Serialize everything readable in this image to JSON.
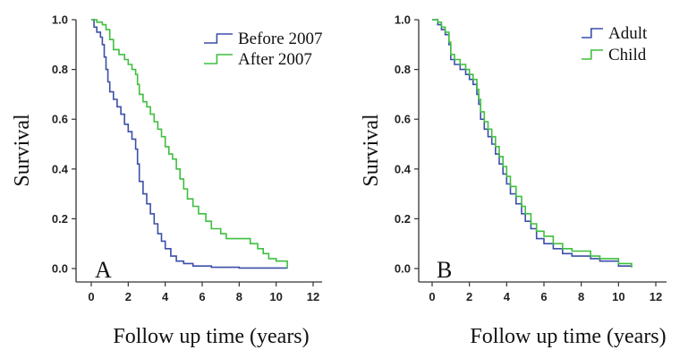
{
  "chart_data": [
    {
      "type": "line",
      "panel_label": "A",
      "xlabel": "Follow up time (years)",
      "ylabel": "Survival",
      "xlim": [
        0,
        12
      ],
      "ylim": [
        0,
        1.0
      ],
      "x_ticks": [
        "0",
        "2",
        "4",
        "6",
        "8",
        "10",
        "12"
      ],
      "y_ticks": [
        "0.0",
        "0.2",
        "0.4",
        "0.6",
        "0.8",
        "1.0"
      ],
      "legend_position": "top-right",
      "series": [
        {
          "name": "Before 2007",
          "color": "#3b4fa8",
          "points": [
            [
              0,
              1.0
            ],
            [
              0.15,
              0.97
            ],
            [
              0.3,
              0.95
            ],
            [
              0.5,
              0.93
            ],
            [
              0.6,
              0.9
            ],
            [
              0.7,
              0.85
            ],
            [
              0.8,
              0.8
            ],
            [
              0.9,
              0.75
            ],
            [
              1.0,
              0.71
            ],
            [
              1.2,
              0.68
            ],
            [
              1.4,
              0.65
            ],
            [
              1.6,
              0.62
            ],
            [
              1.8,
              0.58
            ],
            [
              2.0,
              0.55
            ],
            [
              2.2,
              0.52
            ],
            [
              2.4,
              0.48
            ],
            [
              2.5,
              0.42
            ],
            [
              2.6,
              0.35
            ],
            [
              2.8,
              0.3
            ],
            [
              3.0,
              0.26
            ],
            [
              3.2,
              0.22
            ],
            [
              3.4,
              0.18
            ],
            [
              3.6,
              0.14
            ],
            [
              3.8,
              0.11
            ],
            [
              4.0,
              0.08
            ],
            [
              4.3,
              0.05
            ],
            [
              4.6,
              0.03
            ],
            [
              5.0,
              0.02
            ],
            [
              5.5,
              0.01
            ],
            [
              6.5,
              0.005
            ],
            [
              8.0,
              0.002
            ],
            [
              10.6,
              0.0
            ]
          ]
        },
        {
          "name": "After 2007",
          "color": "#3fbf3f",
          "points": [
            [
              0,
              1.0
            ],
            [
              0.3,
              0.99
            ],
            [
              0.6,
              0.98
            ],
            [
              0.8,
              0.96
            ],
            [
              1.0,
              0.92
            ],
            [
              1.2,
              0.88
            ],
            [
              1.5,
              0.86
            ],
            [
              1.8,
              0.84
            ],
            [
              2.0,
              0.82
            ],
            [
              2.2,
              0.8
            ],
            [
              2.4,
              0.78
            ],
            [
              2.5,
              0.74
            ],
            [
              2.6,
              0.7
            ],
            [
              2.8,
              0.67
            ],
            [
              3.0,
              0.65
            ],
            [
              3.2,
              0.62
            ],
            [
              3.4,
              0.59
            ],
            [
              3.6,
              0.56
            ],
            [
              3.8,
              0.53
            ],
            [
              4.0,
              0.49
            ],
            [
              4.2,
              0.46
            ],
            [
              4.4,
              0.44
            ],
            [
              4.6,
              0.4
            ],
            [
              4.8,
              0.36
            ],
            [
              5.0,
              0.32
            ],
            [
              5.2,
              0.28
            ],
            [
              5.5,
              0.25
            ],
            [
              5.8,
              0.22
            ],
            [
              6.2,
              0.19
            ],
            [
              6.5,
              0.16
            ],
            [
              7.0,
              0.14
            ],
            [
              7.3,
              0.12
            ],
            [
              8.0,
              0.12
            ],
            [
              8.6,
              0.1
            ],
            [
              9.0,
              0.08
            ],
            [
              9.3,
              0.06
            ],
            [
              9.6,
              0.04
            ],
            [
              10.0,
              0.03
            ],
            [
              10.6,
              0.0
            ]
          ]
        }
      ]
    },
    {
      "type": "line",
      "panel_label": "B",
      "xlabel": "Follow up time (years)",
      "ylabel": "Survival",
      "xlim": [
        0,
        12
      ],
      "ylim": [
        0,
        1.0
      ],
      "x_ticks": [
        "0",
        "2",
        "4",
        "6",
        "8",
        "10",
        "12"
      ],
      "y_ticks": [
        "0.0",
        "0.2",
        "0.4",
        "0.6",
        "0.8",
        "1.0"
      ],
      "legend_position": "top-right",
      "series": [
        {
          "name": "Adult",
          "color": "#3b4fa8",
          "points": [
            [
              0,
              1.0
            ],
            [
              0.3,
              0.98
            ],
            [
              0.5,
              0.96
            ],
            [
              0.7,
              0.94
            ],
            [
              0.9,
              0.9
            ],
            [
              1.0,
              0.84
            ],
            [
              1.2,
              0.82
            ],
            [
              1.5,
              0.8
            ],
            [
              1.8,
              0.78
            ],
            [
              2.0,
              0.76
            ],
            [
              2.2,
              0.74
            ],
            [
              2.4,
              0.7
            ],
            [
              2.5,
              0.66
            ],
            [
              2.6,
              0.6
            ],
            [
              2.8,
              0.56
            ],
            [
              3.0,
              0.53
            ],
            [
              3.2,
              0.5
            ],
            [
              3.4,
              0.46
            ],
            [
              3.6,
              0.42
            ],
            [
              3.8,
              0.38
            ],
            [
              4.0,
              0.34
            ],
            [
              4.2,
              0.3
            ],
            [
              4.5,
              0.26
            ],
            [
              4.8,
              0.22
            ],
            [
              5.0,
              0.19
            ],
            [
              5.3,
              0.16
            ],
            [
              5.6,
              0.12
            ],
            [
              6.0,
              0.1
            ],
            [
              6.5,
              0.08
            ],
            [
              7.0,
              0.06
            ],
            [
              7.5,
              0.05
            ],
            [
              8.5,
              0.04
            ],
            [
              9.0,
              0.03
            ],
            [
              10.0,
              0.01
            ],
            [
              10.7,
              0.005
            ]
          ]
        },
        {
          "name": "Child",
          "color": "#3fbf3f",
          "points": [
            [
              0,
              1.0
            ],
            [
              0.3,
              0.99
            ],
            [
              0.5,
              0.97
            ],
            [
              0.7,
              0.95
            ],
            [
              0.9,
              0.91
            ],
            [
              1.0,
              0.86
            ],
            [
              1.2,
              0.84
            ],
            [
              1.5,
              0.82
            ],
            [
              1.8,
              0.8
            ],
            [
              2.0,
              0.78
            ],
            [
              2.2,
              0.76
            ],
            [
              2.4,
              0.72
            ],
            [
              2.5,
              0.68
            ],
            [
              2.6,
              0.63
            ],
            [
              2.8,
              0.59
            ],
            [
              3.0,
              0.56
            ],
            [
              3.2,
              0.53
            ],
            [
              3.4,
              0.49
            ],
            [
              3.6,
              0.45
            ],
            [
              3.8,
              0.41
            ],
            [
              4.0,
              0.37
            ],
            [
              4.2,
              0.33
            ],
            [
              4.5,
              0.29
            ],
            [
              4.8,
              0.25
            ],
            [
              5.0,
              0.22
            ],
            [
              5.3,
              0.18
            ],
            [
              5.6,
              0.15
            ],
            [
              6.0,
              0.13
            ],
            [
              6.5,
              0.1
            ],
            [
              7.0,
              0.08
            ],
            [
              7.5,
              0.07
            ],
            [
              8.5,
              0.05
            ],
            [
              9.0,
              0.04
            ],
            [
              10.0,
              0.02
            ],
            [
              10.7,
              0.005
            ]
          ]
        }
      ]
    }
  ]
}
